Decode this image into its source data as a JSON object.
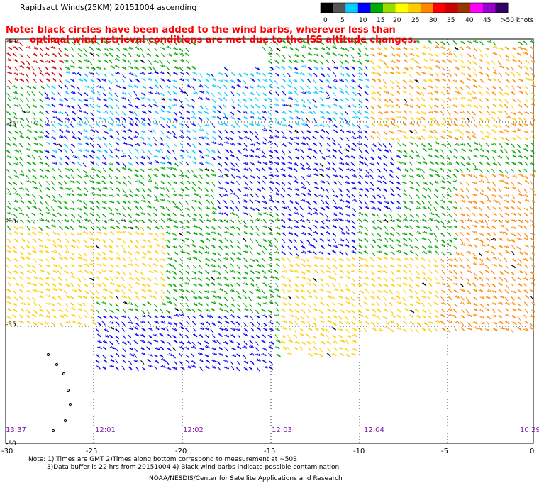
{
  "title": "Rapidsact Winds(25KM) 20151004 ascending",
  "note_lines": [
    "Note: black circles have been added to the wind barbs, wherever less than",
    "optimal wind retrieval conditions are met due to the ISS altitude changes."
  ],
  "legend": {
    "labels": [
      "0",
      "5",
      "10",
      "15",
      "20",
      "25",
      "30",
      "35",
      "40",
      "45",
      ">50 knots"
    ],
    "colors": [
      "#000000",
      "#555555",
      "#00ccff",
      "#0000ff",
      "#00aa00",
      "#99dd00",
      "#ffff00",
      "#ffcc00",
      "#ff8800",
      "#ff0000",
      "#cc0000",
      "#993300",
      "#ff00ff",
      "#9900cc",
      "#330066"
    ]
  },
  "lat_labels": [
    "-40",
    "-45",
    "-50",
    "-55",
    "-60"
  ],
  "lon_labels": [
    "-30",
    "-25",
    "-20",
    "-15",
    "-10",
    "-5",
    "0"
  ],
  "time_labels": [
    "13:37",
    "12:01",
    "12:02",
    "12:03",
    "12:04",
    "10:29"
  ],
  "footer": {
    "line1": "Note: 1) Times are GMT 2)Times along bottom correspond to measurement at ~50S",
    "line2": "3)Data buffer is 22 hrs from 20151004 4) Black wind barbs indicate possible contamination",
    "line3": "NOAA/NESDIS/Center for Satellite Applications and Research"
  },
  "wind_colors": {
    "calm": "#00ccff",
    "light": "#0000ff",
    "moderate": "#00aa00",
    "fresh": "#ffcc00",
    "strong": "#ff8800",
    "gale": "#cc0000",
    "contaminated": "#000000"
  }
}
